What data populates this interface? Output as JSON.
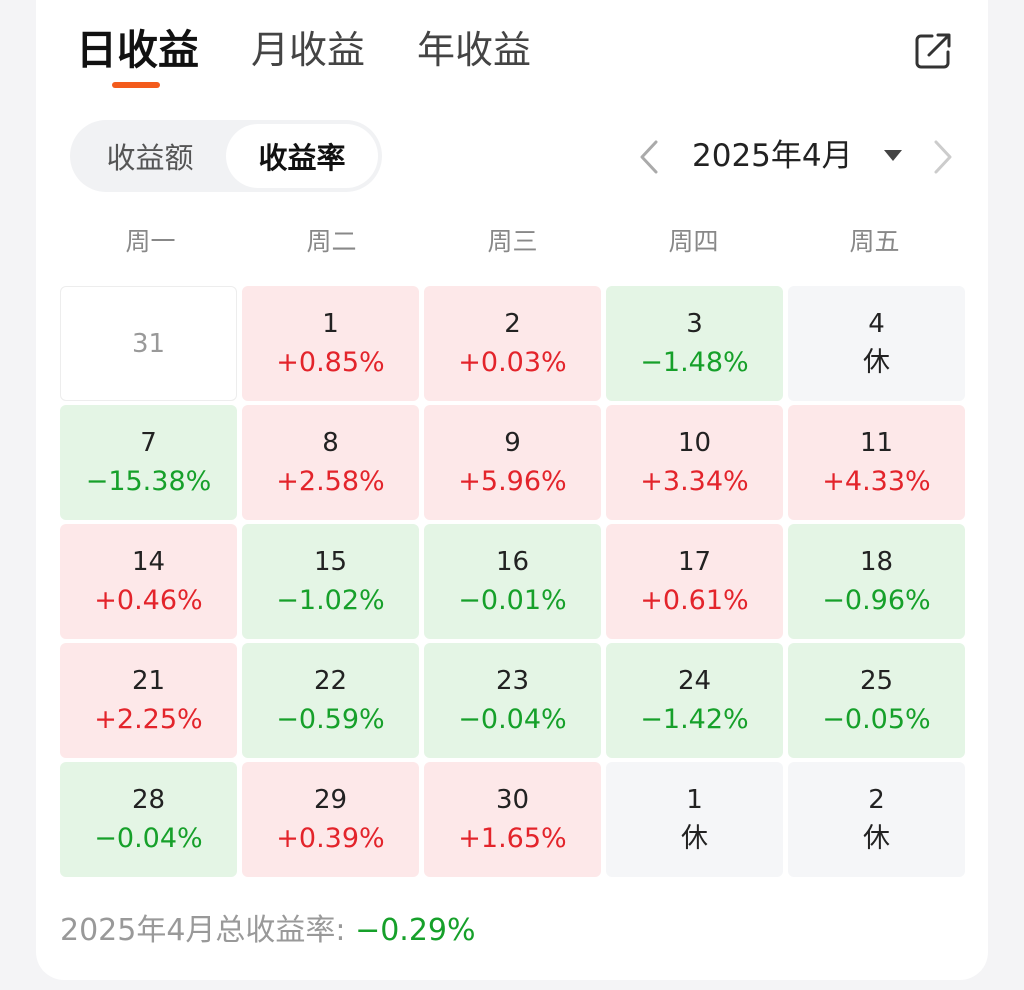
{
  "tabs": [
    {
      "label": "日收益",
      "active": true
    },
    {
      "label": "月收益",
      "active": false
    },
    {
      "label": "年收益",
      "active": false
    }
  ],
  "icons": {
    "share": "share-icon",
    "prev": "chevron-left-icon",
    "next": "chevron-right-icon",
    "caret": "caret-down-icon"
  },
  "segment": {
    "amount": "收益额",
    "rate": "收益率",
    "selected": "收益率"
  },
  "month": {
    "label": "2025年4月"
  },
  "weekdays": [
    "周一",
    "周二",
    "周三",
    "周四",
    "周五"
  ],
  "colors": {
    "up": "#e3242b",
    "down": "#16a02a",
    "accent": "#f35b1c"
  },
  "days": [
    {
      "day": "31",
      "value": "",
      "status": "out"
    },
    {
      "day": "1",
      "value": "+0.85%",
      "status": "up"
    },
    {
      "day": "2",
      "value": "+0.03%",
      "status": "up"
    },
    {
      "day": "3",
      "value": "−1.48%",
      "status": "down"
    },
    {
      "day": "4",
      "value": "休",
      "status": "rest"
    },
    {
      "day": "7",
      "value": "−15.38%",
      "status": "down"
    },
    {
      "day": "8",
      "value": "+2.58%",
      "status": "up"
    },
    {
      "day": "9",
      "value": "+5.96%",
      "status": "up"
    },
    {
      "day": "10",
      "value": "+3.34%",
      "status": "up"
    },
    {
      "day": "11",
      "value": "+4.33%",
      "status": "up"
    },
    {
      "day": "14",
      "value": "+0.46%",
      "status": "up"
    },
    {
      "day": "15",
      "value": "−1.02%",
      "status": "down"
    },
    {
      "day": "16",
      "value": "−0.01%",
      "status": "down"
    },
    {
      "day": "17",
      "value": "+0.61%",
      "status": "up"
    },
    {
      "day": "18",
      "value": "−0.96%",
      "status": "down"
    },
    {
      "day": "21",
      "value": "+2.25%",
      "status": "up"
    },
    {
      "day": "22",
      "value": "−0.59%",
      "status": "down"
    },
    {
      "day": "23",
      "value": "−0.04%",
      "status": "down"
    },
    {
      "day": "24",
      "value": "−1.42%",
      "status": "down"
    },
    {
      "day": "25",
      "value": "−0.05%",
      "status": "down"
    },
    {
      "day": "28",
      "value": "−0.04%",
      "status": "down"
    },
    {
      "day": "29",
      "value": "+0.39%",
      "status": "up"
    },
    {
      "day": "30",
      "value": "+1.65%",
      "status": "up"
    },
    {
      "day": "1",
      "value": "休",
      "status": "rest"
    },
    {
      "day": "2",
      "value": "休",
      "status": "rest"
    }
  ],
  "summary": {
    "label": "2025年4月总收益率: ",
    "value": "−0.29%"
  }
}
